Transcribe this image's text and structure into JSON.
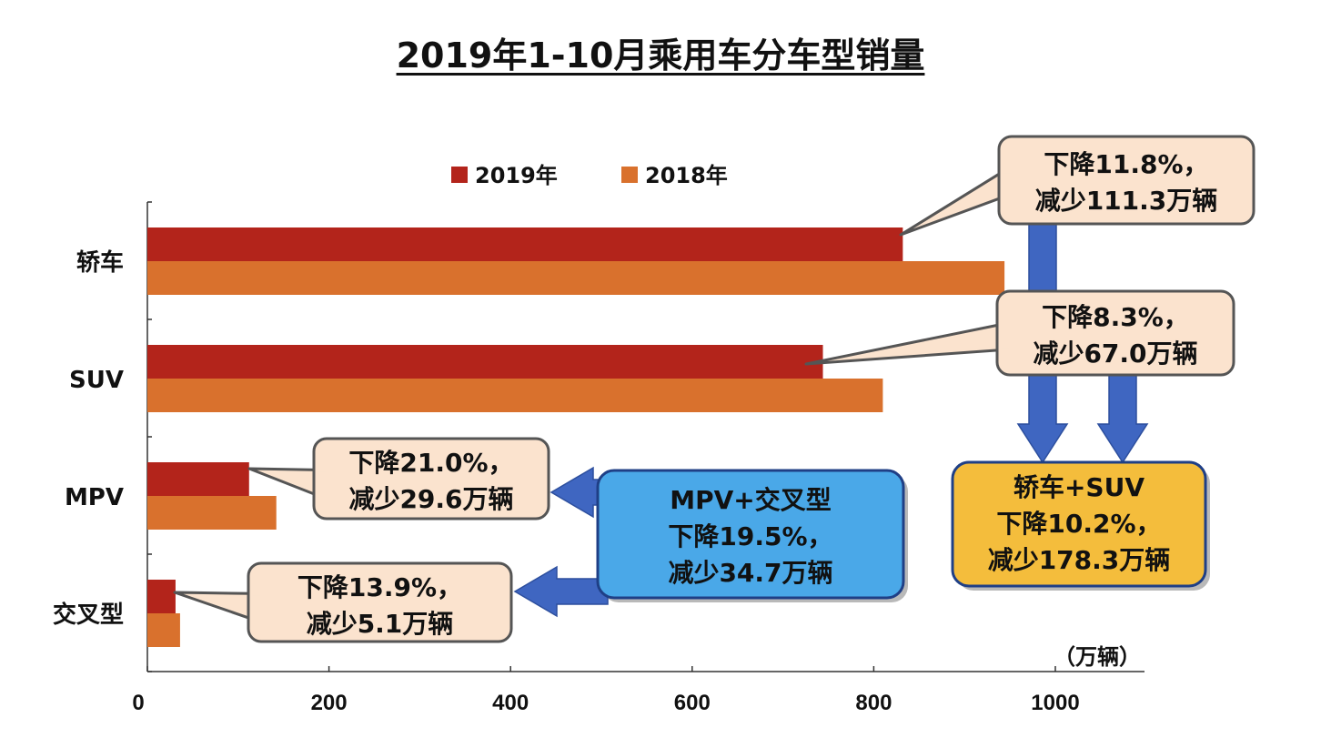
{
  "title": "2019年1-10月乘用车分车型销量",
  "colors": {
    "s2019": "#b3241b",
    "s2018": "#d9712d",
    "callout_bg": "#fbe3ce",
    "callout_border": "#555555",
    "blue_box": "#4aa8e8",
    "yellow_box": "#f4bd3c",
    "arrow": "#3f66c1"
  },
  "chart_data": {
    "type": "bar",
    "orientation": "horizontal",
    "categories": [
      "轿车",
      "SUV",
      "MPV",
      "交叉型"
    ],
    "series": [
      {
        "name": "2019年",
        "values": [
          832,
          744,
          112,
          31
        ]
      },
      {
        "name": "2018年",
        "values": [
          944,
          810,
          142,
          36
        ]
      }
    ],
    "xlim": [
      0,
      1100
    ],
    "xticks": [
      0,
      200,
      400,
      600,
      800,
      1000
    ],
    "unit": "（万辆）",
    "legend_position": "top"
  },
  "callouts": {
    "sedan": [
      "下降11.8%，",
      "减少111.3万辆"
    ],
    "suv": [
      "下降8.3%，",
      "减少67.0万辆"
    ],
    "mpv": [
      "下降21.0%，",
      "减少29.6万辆"
    ],
    "cross": [
      "下降13.9%，",
      "减少5.1万辆"
    ],
    "mpv_cross": [
      "MPV+交叉型",
      "下降19.5%，",
      "减少34.7万辆"
    ],
    "sedan_suv": [
      "轿车+SUV",
      "下降10.2%，",
      "减少178.3万辆"
    ]
  }
}
